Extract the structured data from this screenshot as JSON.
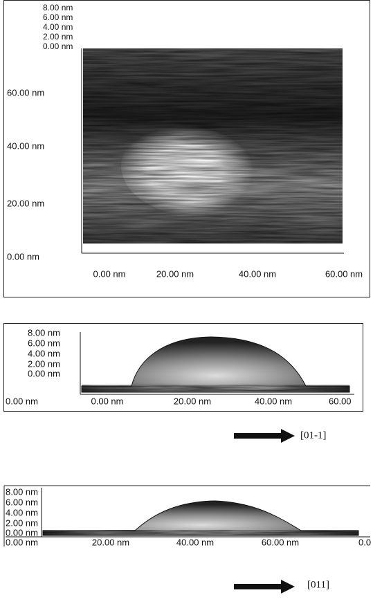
{
  "panels": [
    {
      "z_labels": [
        "8.00 nm",
        "6.00 nm",
        "4.00 nm",
        "2.00 nm",
        "0.00 nm"
      ],
      "y_labels": [
        "60.00 nm",
        "40.00 nm",
        "20.00 nm",
        "0.00 nm"
      ],
      "x_labels": [
        "0.00 nm",
        "20.00 nm",
        "40.00 nm",
        "60.00 nm"
      ]
    },
    {
      "z_labels": [
        "8.00 nm",
        "6.00 nm",
        "4.00 nm",
        "2.00 nm",
        "0.00 nm"
      ],
      "x_labels": [
        "0.00 nm",
        "0.00 nm",
        "20.00 nm",
        "40.00 nm",
        "60.00"
      ],
      "direction": "[01-1]"
    },
    {
      "z_labels": [
        "8.00 nm",
        "6.00 nm",
        "4.00 nm",
        "2.00 nm",
        "0.00 nm"
      ],
      "x_labels": [
        "0.00 nm",
        "20.00 nm",
        "40.00 nm",
        "60.00 nm",
        "0.0"
      ],
      "direction": "[011]"
    }
  ]
}
